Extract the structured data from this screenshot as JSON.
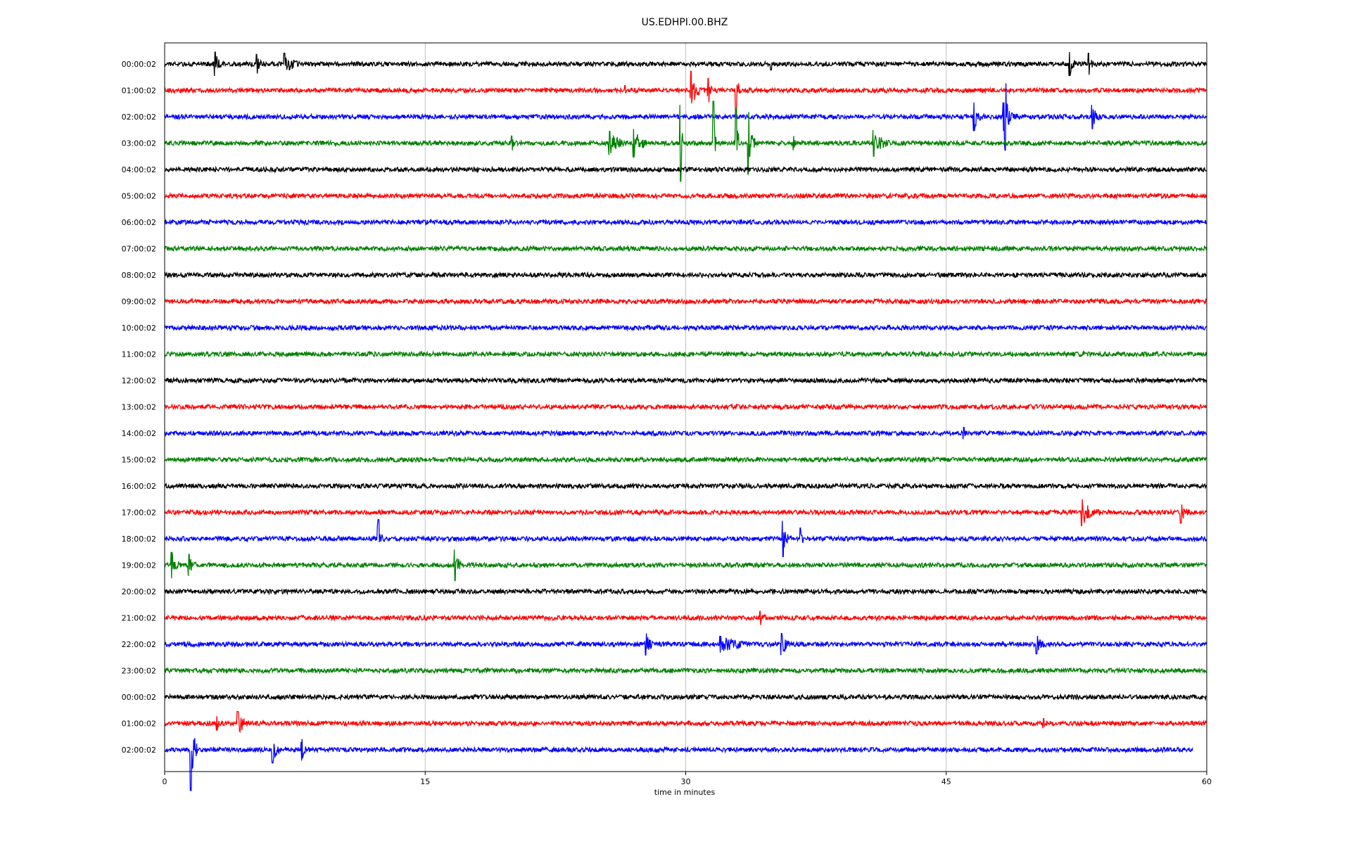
{
  "chart_data": {
    "type": "line",
    "title": "US.EDHPI.00.BHZ",
    "xlabel": "time in minutes",
    "ylabel": "",
    "xlim": [
      0,
      60
    ],
    "x_ticks": [
      0,
      15,
      30,
      45,
      60
    ],
    "grid": "vertical",
    "colors": [
      "#000000",
      "#ff0000",
      "#0000ff",
      "#008000"
    ],
    "trace_end_minutes": [
      60,
      60,
      60,
      60,
      60,
      60,
      60,
      60,
      60,
      60,
      60,
      60,
      60,
      60,
      60,
      60,
      60,
      60,
      60,
      60,
      60,
      60,
      60,
      60,
      60,
      60,
      59.2
    ],
    "rows": [
      {
        "label": "00:00:02",
        "events": [
          {
            "t": 2.9,
            "amp": 0.5,
            "dur": 0.6
          },
          {
            "t": 5.3,
            "amp": 0.4,
            "dur": 0.8
          },
          {
            "t": 6.9,
            "amp": 0.45,
            "dur": 1.2
          },
          {
            "t": 34.9,
            "amp": 0.25,
            "dur": 0.3
          },
          {
            "t": 52.1,
            "amp": 0.5,
            "dur": 0.5
          },
          {
            "t": 53.2,
            "amp": 0.45,
            "dur": 0.6
          }
        ]
      },
      {
        "label": "01:00:02",
        "events": [
          {
            "t": 30.3,
            "amp": 0.8,
            "dur": 0.6
          },
          {
            "t": 31.3,
            "amp": 0.5,
            "dur": 0.3
          },
          {
            "t": 32.9,
            "amp": 1.0,
            "dur": 0.2
          },
          {
            "t": 26.5,
            "amp": 0.2,
            "dur": 0.2
          }
        ]
      },
      {
        "label": "02:00:02",
        "events": [
          {
            "t": 46.6,
            "amp": 0.6,
            "dur": 0.6
          },
          {
            "t": 48.4,
            "amp": 1.4,
            "dur": 0.2
          },
          {
            "t": 48.3,
            "amp": 0.6,
            "dur": 1.0
          },
          {
            "t": 53.4,
            "amp": 0.5,
            "dur": 0.6
          }
        ]
      },
      {
        "label": "03:00:02",
        "events": [
          {
            "t": 29.7,
            "amp": 1.6,
            "dur": 0.15
          },
          {
            "t": 31.6,
            "amp": 1.75,
            "dur": 0.15
          },
          {
            "t": 32.9,
            "amp": 1.45,
            "dur": 0.15
          },
          {
            "t": 33.6,
            "amp": 1.3,
            "dur": 0.4
          },
          {
            "t": 25.6,
            "amp": 0.5,
            "dur": 1.4
          },
          {
            "t": 27.0,
            "amp": 0.6,
            "dur": 1.0
          },
          {
            "t": 40.8,
            "amp": 0.55,
            "dur": 1.2
          },
          {
            "t": 20.0,
            "amp": 0.3,
            "dur": 0.2
          },
          {
            "t": 36.2,
            "amp": 0.3,
            "dur": 0.3
          }
        ]
      },
      {
        "label": "04:00:02",
        "events": []
      },
      {
        "label": "05:00:02",
        "events": []
      },
      {
        "label": "06:00:02",
        "events": []
      },
      {
        "label": "07:00:02",
        "events": []
      },
      {
        "label": "08:00:02",
        "events": []
      },
      {
        "label": "09:00:02",
        "events": []
      },
      {
        "label": "10:00:02",
        "events": []
      },
      {
        "label": "11:00:02",
        "events": []
      },
      {
        "label": "12:00:02",
        "events": []
      },
      {
        "label": "13:00:02",
        "events": []
      },
      {
        "label": "14:00:02",
        "events": [
          {
            "t": 46.0,
            "amp": 0.25,
            "dur": 0.2
          }
        ]
      },
      {
        "label": "15:00:02",
        "events": []
      },
      {
        "label": "16:00:02",
        "events": []
      },
      {
        "label": "17:00:02",
        "events": [
          {
            "t": 52.8,
            "amp": 0.55,
            "dur": 1.3
          },
          {
            "t": 58.5,
            "amp": 0.45,
            "dur": 0.6
          }
        ]
      },
      {
        "label": "18:00:02",
        "events": [
          {
            "t": 12.3,
            "amp": 0.8,
            "dur": 0.4
          },
          {
            "t": 35.6,
            "amp": 0.75,
            "dur": 0.5
          },
          {
            "t": 36.6,
            "amp": 0.45,
            "dur": 0.4
          }
        ]
      },
      {
        "label": "19:00:02",
        "events": [
          {
            "t": 0.4,
            "amp": 0.55,
            "dur": 0.6
          },
          {
            "t": 1.4,
            "amp": 0.45,
            "dur": 0.6
          },
          {
            "t": 16.7,
            "amp": 0.65,
            "dur": 0.5
          }
        ]
      },
      {
        "label": "20:00:02",
        "events": []
      },
      {
        "label": "21:00:02",
        "events": [
          {
            "t": 34.3,
            "amp": 0.3,
            "dur": 0.6
          }
        ]
      },
      {
        "label": "22:00:02",
        "events": [
          {
            "t": 27.7,
            "amp": 0.45,
            "dur": 0.6
          },
          {
            "t": 32.0,
            "amp": 0.35,
            "dur": 3.3
          },
          {
            "t": 35.5,
            "amp": 0.45,
            "dur": 0.8
          },
          {
            "t": 50.2,
            "amp": 0.4,
            "dur": 0.8
          }
        ]
      },
      {
        "label": "23:00:02",
        "events": []
      },
      {
        "label": "00:00:02",
        "events": []
      },
      {
        "label": "01:00:02",
        "events": [
          {
            "t": 3.0,
            "amp": 0.3,
            "dur": 0.2
          },
          {
            "t": 4.2,
            "amp": 0.5,
            "dur": 0.9
          },
          {
            "t": 50.6,
            "amp": 0.2,
            "dur": 0.3
          }
        ]
      },
      {
        "label": "02:00:02",
        "events": [
          {
            "t": 1.5,
            "amp": 1.7,
            "dur": 0.4
          },
          {
            "t": 6.2,
            "amp": 0.55,
            "dur": 0.6
          },
          {
            "t": 7.9,
            "amp": 0.45,
            "dur": 0.5
          }
        ]
      }
    ]
  }
}
